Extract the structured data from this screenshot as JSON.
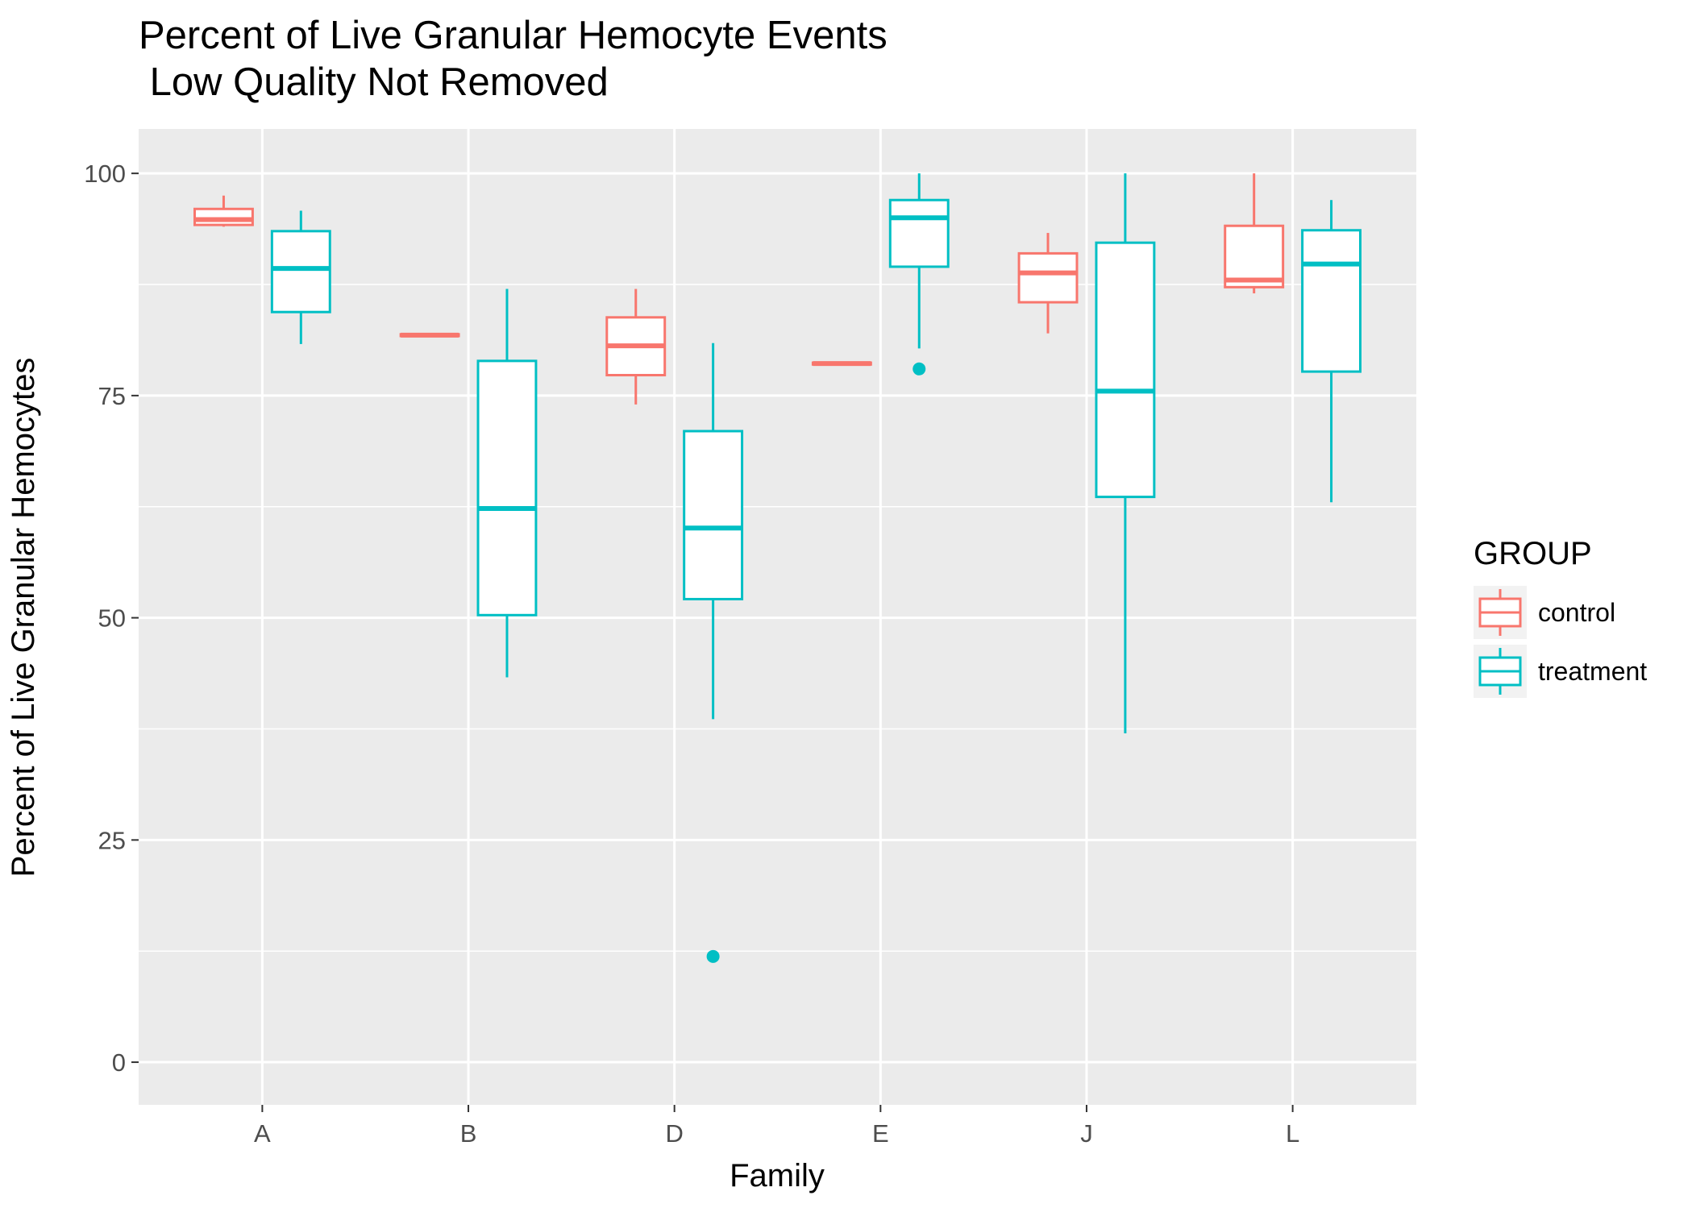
{
  "chart_data": {
    "type": "boxplot",
    "title": "Percent of Live Granular Hemocyte Events",
    "subtitle": " Low Quality Not Removed",
    "xlabel": "Family",
    "ylabel": "Percent of Live Granular Hemocytes",
    "categories": [
      "A",
      "B",
      "D",
      "E",
      "J",
      "L"
    ],
    "ylim": [
      -4.8,
      105
    ],
    "yticks": [
      0,
      25,
      50,
      75,
      100
    ],
    "grid": true,
    "legend": {
      "title": "GROUP",
      "position": "right"
    },
    "series": [
      {
        "name": "control",
        "color": "#F8766D",
        "boxes": [
          {
            "category": "A",
            "min": 94.0,
            "q1": 94.2,
            "median": 94.8,
            "q3": 96.0,
            "max": 97.5,
            "outliers": []
          },
          {
            "category": "B",
            "min": 81.7,
            "q1": 81.7,
            "median": 81.8,
            "q3": 81.9,
            "max": 81.9,
            "outliers": []
          },
          {
            "category": "D",
            "min": 74.0,
            "q1": 77.3,
            "median": 80.6,
            "q3": 83.8,
            "max": 87.0,
            "outliers": []
          },
          {
            "category": "E",
            "min": 78.5,
            "q1": 78.5,
            "median": 78.6,
            "q3": 78.7,
            "max": 78.7,
            "outliers": []
          },
          {
            "category": "J",
            "min": 82.0,
            "q1": 85.5,
            "median": 88.8,
            "q3": 91.0,
            "max": 93.3,
            "outliers": []
          },
          {
            "category": "L",
            "min": 86.5,
            "q1": 87.2,
            "median": 88.0,
            "q3": 94.1,
            "max": 100.0,
            "outliers": []
          }
        ]
      },
      {
        "name": "treatment",
        "color": "#00BFC4",
        "boxes": [
          {
            "category": "A",
            "min": 80.8,
            "q1": 84.4,
            "median": 89.3,
            "q3": 93.5,
            "max": 95.8,
            "outliers": []
          },
          {
            "category": "B",
            "min": 43.3,
            "q1": 50.3,
            "median": 62.3,
            "q3": 78.9,
            "max": 87.0,
            "outliers": []
          },
          {
            "category": "D",
            "min": 38.6,
            "q1": 52.1,
            "median": 60.1,
            "q3": 71.0,
            "max": 80.9,
            "outliers": [
              11.9
            ]
          },
          {
            "category": "E",
            "min": 80.3,
            "q1": 89.5,
            "median": 95.0,
            "q3": 97.0,
            "max": 100.0,
            "outliers": [
              78.0
            ]
          },
          {
            "category": "J",
            "min": 37.0,
            "q1": 63.6,
            "median": 75.5,
            "q3": 92.2,
            "max": 100.0,
            "outliers": []
          },
          {
            "category": "L",
            "min": 63.0,
            "q1": 77.7,
            "median": 89.8,
            "q3": 93.6,
            "max": 97.0,
            "outliers": []
          }
        ]
      }
    ]
  }
}
